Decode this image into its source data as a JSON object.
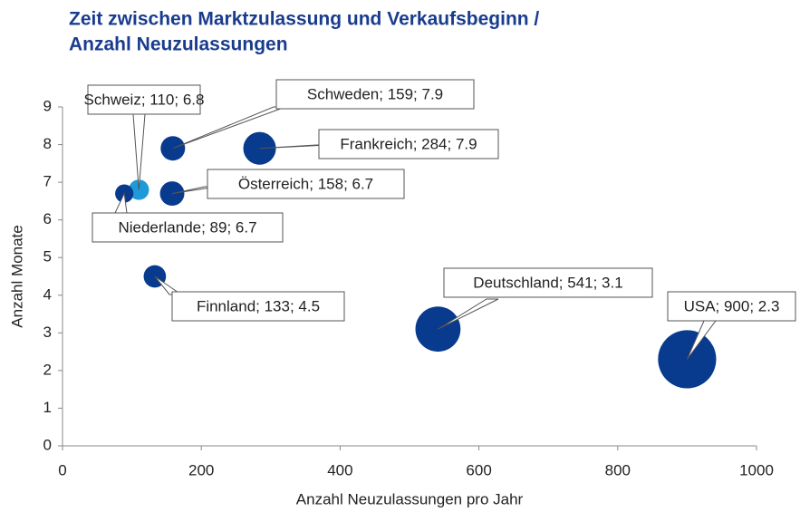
{
  "chart_data": {
    "type": "bubble",
    "title": [
      "Zeit zwischen Marktzulassung und Verkaufsbeginn /",
      "Anzahl Neuzulassungen"
    ],
    "xlabel": "Anzahl Neuzulassungen pro Jahr",
    "ylabel": "Anzahl Monate",
    "x": [
      110,
      159,
      284,
      158,
      89,
      133,
      541,
      900
    ],
    "values": [
      6.8,
      7.9,
      7.9,
      6.7,
      6.7,
      4.5,
      3.1,
      2.3
    ],
    "value_labels": [
      "Schweiz; 110; 6.8",
      "Schweden; 159; 7.9",
      "Frankreich; 284; 7.9",
      "Österreich; 158; 6.7",
      "Niederlande; 89; 6.7",
      "Finnland; 133; 4.5",
      "Deutschland; 541; 3.1",
      "USA; 900; 2.3"
    ],
    "colors": [
      "#1e9ad8",
      "#083a8e",
      "#083a8e",
      "#083a8e",
      "#083a8e",
      "#083a8e",
      "#083a8e",
      "#083a8e"
    ],
    "xlim": [
      0,
      1000
    ],
    "xticks": [
      0,
      200,
      400,
      600,
      800,
      1000
    ],
    "ylim": [
      0,
      9
    ],
    "yticks": [
      0,
      1,
      2,
      3,
      4,
      5,
      6,
      7,
      8,
      9
    ]
  }
}
